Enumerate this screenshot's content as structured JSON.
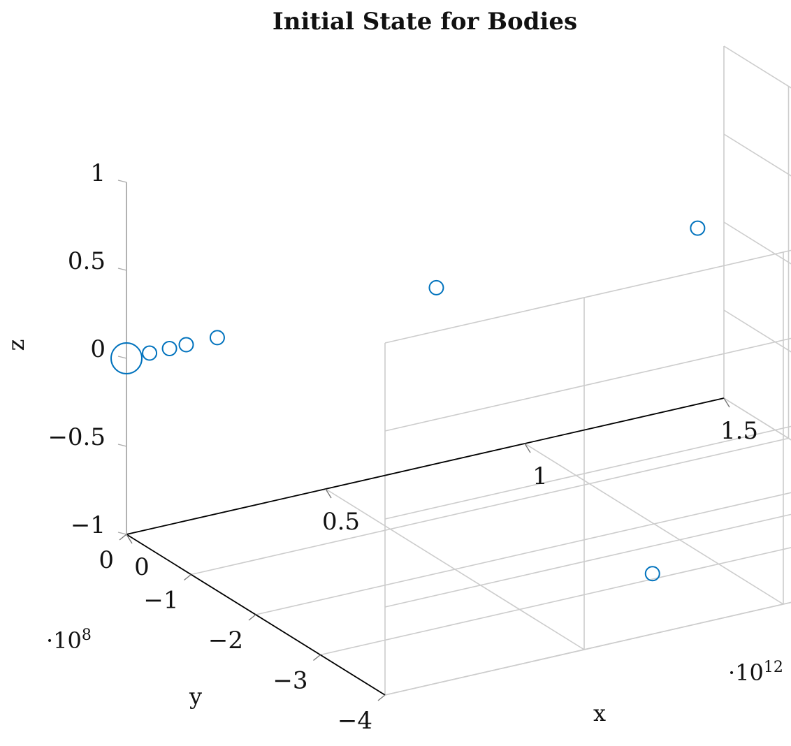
{
  "chart_data": {
    "type": "scatter",
    "title": "Initial State for Bodies",
    "xlabel": "x",
    "ylabel": "y",
    "zlabel": "z",
    "x_scale_label": "·10",
    "x_scale_exp": "12",
    "y_scale_label": "·10",
    "y_scale_exp": "8",
    "xlim": [
      0,
      1.5
    ],
    "ylim": [
      -4,
      0
    ],
    "zlim": [
      -1,
      1
    ],
    "x_ticks": [
      0,
      0.5,
      1,
      1.5
    ],
    "x_tick_labels": [
      "0",
      "0.5",
      "1",
      "1.5"
    ],
    "y_ticks": [
      0,
      -1,
      -2,
      -3,
      -4
    ],
    "y_tick_labels": [
      "0",
      "−1",
      "−2",
      "−3",
      "−4"
    ],
    "z_ticks": [
      1,
      0.5,
      0,
      -0.5,
      -1
    ],
    "z_tick_labels": [
      "1",
      "0.5",
      "0",
      "−0.5",
      "−1"
    ],
    "grid": true,
    "marker": "open-circle",
    "colors": {
      "series": "#0072bd",
      "grid": "#cccccc",
      "axis": "#000000"
    },
    "series": [
      {
        "points": [
          {
            "x": 0.0,
            "y": 0.0,
            "z": 0.0,
            "size": "large"
          },
          {
            "x": 0.058,
            "y": 0.0,
            "z": 0.0,
            "size": "small"
          },
          {
            "x": 0.108,
            "y": 0.0,
            "z": 0.0,
            "size": "small"
          },
          {
            "x": 0.15,
            "y": 0.0,
            "z": 0.0,
            "size": "small"
          },
          {
            "x": 0.228,
            "y": 0.0,
            "z": 0.0,
            "size": "small"
          },
          {
            "x": 0.778,
            "y": 0.0,
            "z": 0.0,
            "size": "small"
          },
          {
            "x": 1.434,
            "y": 0.0,
            "z": 0.0,
            "size": "small"
          },
          {
            "x": 0.85,
            "y": -2.9,
            "z": -1.0,
            "size": "small"
          }
        ]
      }
    ]
  }
}
